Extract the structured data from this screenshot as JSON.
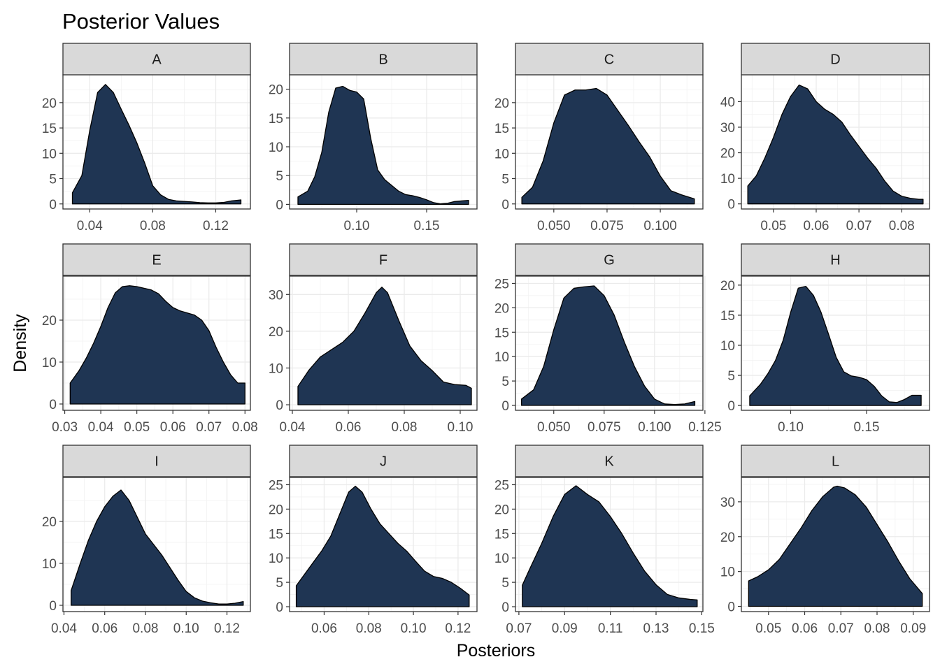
{
  "chart_data": {
    "type": "area",
    "title": "Posterior Values",
    "xlabel": "Posteriors",
    "ylabel": "Density",
    "fill_color": "#1f3553",
    "strip_color": "#d9d9d9",
    "facets": [
      {
        "label": "A",
        "xlim": [
          0.023,
          0.142
        ],
        "ylim": [
          -1,
          25.5
        ],
        "xticks": [
          0.04,
          0.08,
          0.12
        ],
        "xtick_labels": [
          "0.04",
          "0.08",
          "0.12"
        ],
        "yticks": [
          0,
          5,
          10,
          15,
          20
        ],
        "ytick_labels": [
          "0",
          "5",
          "10",
          "15",
          "20"
        ],
        "x": [
          0.029,
          0.035,
          0.04,
          0.045,
          0.05,
          0.055,
          0.06,
          0.065,
          0.07,
          0.075,
          0.08,
          0.085,
          0.09,
          0.095,
          0.1,
          0.105,
          0.11,
          0.115,
          0.12,
          0.125,
          0.13,
          0.136
        ],
        "y": [
          2.2,
          5.6,
          14.5,
          22.0,
          23.6,
          22.0,
          18.7,
          15.5,
          12.0,
          8.0,
          3.6,
          1.8,
          0.9,
          0.6,
          0.5,
          0.4,
          0.25,
          0.2,
          0.2,
          0.3,
          0.6,
          0.8
        ]
      },
      {
        "label": "B",
        "xlim": [
          0.052,
          0.186
        ],
        "ylim": [
          -0.8,
          22.5
        ],
        "xticks": [
          0.1,
          0.15
        ],
        "xtick_labels": [
          "0.10",
          "0.15"
        ],
        "yticks": [
          0,
          5,
          10,
          15,
          20
        ],
        "ytick_labels": [
          "0",
          "5",
          "10",
          "15",
          "20"
        ],
        "x": [
          0.058,
          0.065,
          0.07,
          0.075,
          0.08,
          0.085,
          0.09,
          0.095,
          0.1,
          0.105,
          0.11,
          0.115,
          0.12,
          0.125,
          0.13,
          0.135,
          0.14,
          0.145,
          0.15,
          0.155,
          0.16,
          0.165,
          0.17,
          0.175,
          0.18
        ],
        "y": [
          1.3,
          2.3,
          4.8,
          9.0,
          16.0,
          20.2,
          20.5,
          19.8,
          19.5,
          18.3,
          11.5,
          6.0,
          4.3,
          3.3,
          2.3,
          1.7,
          1.5,
          1.2,
          0.8,
          0.3,
          0.1,
          0.2,
          0.5,
          0.6,
          0.7
        ]
      },
      {
        "label": "C",
        "xlim": [
          0.032,
          0.12
        ],
        "ylim": [
          -1,
          25.5
        ],
        "xticks": [
          0.05,
          0.075,
          0.1
        ],
        "xtick_labels": [
          "0.050",
          "0.075",
          "0.100"
        ],
        "yticks": [
          0,
          5,
          10,
          15,
          20
        ],
        "ytick_labels": [
          "0",
          "5",
          "10",
          "15",
          "20"
        ],
        "x": [
          0.035,
          0.04,
          0.045,
          0.05,
          0.055,
          0.06,
          0.065,
          0.07,
          0.075,
          0.08,
          0.085,
          0.09,
          0.095,
          0.1,
          0.105,
          0.11,
          0.116
        ],
        "y": [
          1.3,
          3.3,
          8.5,
          16.0,
          21.5,
          22.5,
          22.5,
          22.8,
          21.5,
          18.5,
          15.5,
          12.3,
          9.3,
          5.5,
          2.6,
          1.8,
          1.0
        ]
      },
      {
        "label": "D",
        "xlim": [
          0.0425,
          0.0865
        ],
        "ylim": [
          -2,
          50.5
        ],
        "xticks": [
          0.05,
          0.06,
          0.07,
          0.08
        ],
        "xtick_labels": [
          "0.05",
          "0.06",
          "0.07",
          "0.08"
        ],
        "yticks": [
          0,
          10,
          20,
          30,
          40
        ],
        "ytick_labels": [
          "0",
          "10",
          "20",
          "30",
          "40"
        ],
        "x": [
          0.044,
          0.046,
          0.048,
          0.05,
          0.052,
          0.054,
          0.056,
          0.058,
          0.06,
          0.062,
          0.064,
          0.066,
          0.068,
          0.07,
          0.072,
          0.074,
          0.076,
          0.078,
          0.08,
          0.082,
          0.084,
          0.085
        ],
        "y": [
          7,
          11,
          18,
          26,
          35,
          42,
          46.5,
          45,
          40,
          37,
          35,
          32,
          27,
          22.5,
          18,
          14,
          9,
          5,
          3,
          2.2,
          1.8,
          1.8
        ]
      },
      {
        "label": "E",
        "xlim": [
          0.0295,
          0.0815
        ],
        "ylim": [
          -1.5,
          30.5
        ],
        "xticks": [
          0.03,
          0.04,
          0.05,
          0.06,
          0.07,
          0.08
        ],
        "xtick_labels": [
          "0.03",
          "0.04",
          "0.05",
          "0.06",
          "0.07",
          "0.08"
        ],
        "yticks": [
          0,
          10,
          20
        ],
        "ytick_labels": [
          "0",
          "10",
          "20"
        ],
        "x": [
          0.0315,
          0.034,
          0.036,
          0.038,
          0.04,
          0.042,
          0.044,
          0.046,
          0.048,
          0.05,
          0.052,
          0.054,
          0.056,
          0.058,
          0.06,
          0.062,
          0.064,
          0.066,
          0.068,
          0.07,
          0.072,
          0.074,
          0.076,
          0.078,
          0.08
        ],
        "y": [
          5,
          8,
          11,
          14.5,
          18.5,
          23,
          26.5,
          28,
          28.2,
          28,
          27.6,
          27.2,
          26.3,
          24.5,
          23,
          22.2,
          21.7,
          21.2,
          20,
          17.5,
          13.5,
          10,
          7,
          5,
          5
        ]
      },
      {
        "label": "F",
        "xlim": [
          0.039,
          0.106
        ],
        "ylim": [
          -1.5,
          35
        ],
        "xticks": [
          0.04,
          0.06,
          0.08,
          0.1
        ],
        "xtick_labels": [
          "0.04",
          "0.06",
          "0.08",
          "0.10"
        ],
        "yticks": [
          0,
          10,
          20,
          30
        ],
        "ytick_labels": [
          "0",
          "10",
          "20",
          "30"
        ],
        "x": [
          0.042,
          0.046,
          0.05,
          0.054,
          0.058,
          0.062,
          0.066,
          0.07,
          0.072,
          0.074,
          0.078,
          0.082,
          0.086,
          0.09,
          0.094,
          0.098,
          0.102,
          0.104
        ],
        "y": [
          5,
          9.5,
          13,
          15,
          17,
          20,
          25,
          30.5,
          32,
          30.5,
          23,
          16,
          12,
          9.3,
          6.2,
          5.5,
          5.3,
          4.5
        ]
      },
      {
        "label": "G",
        "xlim": [
          0.031,
          0.124
        ],
        "ylim": [
          -1,
          26.5
        ],
        "xticks": [
          0.05,
          0.075,
          0.1,
          0.125
        ],
        "xtick_labels": [
          "0.050",
          "0.075",
          "0.100",
          "0.125"
        ],
        "yticks": [
          0,
          5,
          10,
          15,
          20,
          25
        ],
        "ytick_labels": [
          "0",
          "5",
          "10",
          "15",
          "20",
          "25"
        ],
        "x": [
          0.034,
          0.04,
          0.045,
          0.05,
          0.055,
          0.06,
          0.065,
          0.07,
          0.075,
          0.08,
          0.085,
          0.09,
          0.095,
          0.1,
          0.105,
          0.11,
          0.115,
          0.12
        ],
        "y": [
          1.3,
          3.2,
          8,
          15.5,
          22,
          24,
          24.3,
          24.5,
          22.5,
          18.5,
          13,
          8,
          4,
          1.3,
          0.3,
          0.2,
          0.3,
          0.8
        ]
      },
      {
        "label": "H",
        "xlim": [
          0.0675,
          0.1915
        ],
        "ylim": [
          -0.8,
          21.5
        ],
        "xticks": [
          0.1,
          0.15
        ],
        "xtick_labels": [
          "0.10",
          "0.15"
        ],
        "yticks": [
          0,
          5,
          10,
          15,
          20
        ],
        "ytick_labels": [
          "0",
          "5",
          "10",
          "15",
          "20"
        ],
        "x": [
          0.073,
          0.08,
          0.085,
          0.09,
          0.095,
          0.1,
          0.105,
          0.11,
          0.115,
          0.12,
          0.125,
          0.13,
          0.135,
          0.14,
          0.145,
          0.15,
          0.155,
          0.16,
          0.165,
          0.17,
          0.175,
          0.18,
          0.186
        ],
        "y": [
          1.6,
          3.5,
          5.3,
          7.5,
          10.8,
          15.5,
          19.5,
          19.8,
          18.3,
          15.5,
          11.8,
          8,
          5.6,
          4.9,
          4.7,
          4.3,
          3.2,
          1.6,
          0.6,
          0.5,
          1.0,
          1.7,
          1.7
        ]
      },
      {
        "label": "I",
        "xlim": [
          0.0395,
          0.1315
        ],
        "ylim": [
          -1.5,
          30.5
        ],
        "xticks": [
          0.04,
          0.06,
          0.08,
          0.1,
          0.12
        ],
        "xtick_labels": [
          "0.04",
          "0.06",
          "0.08",
          "0.10",
          "0.12"
        ],
        "yticks": [
          0,
          10,
          20
        ],
        "ytick_labels": [
          "0",
          "10",
          "20"
        ],
        "x": [
          0.0435,
          0.048,
          0.052,
          0.056,
          0.06,
          0.064,
          0.068,
          0.072,
          0.076,
          0.08,
          0.084,
          0.088,
          0.092,
          0.096,
          0.1,
          0.104,
          0.108,
          0.112,
          0.116,
          0.12,
          0.124,
          0.128
        ],
        "y": [
          3.5,
          10,
          15.5,
          20,
          23.5,
          26,
          27.5,
          25,
          21,
          17,
          14.5,
          12,
          9,
          6,
          3.3,
          1.8,
          1.0,
          0.6,
          0.3,
          0.3,
          0.5,
          0.9
        ]
      },
      {
        "label": "J",
        "xlim": [
          0.0445,
          0.1285
        ],
        "ylim": [
          -1,
          26.5
        ],
        "xticks": [
          0.06,
          0.08,
          0.1,
          0.12
        ],
        "xtick_labels": [
          "0.06",
          "0.08",
          "0.10",
          "0.12"
        ],
        "yticks": [
          0,
          5,
          10,
          15,
          20,
          25
        ],
        "ytick_labels": [
          "0",
          "5",
          "10",
          "15",
          "20",
          "25"
        ],
        "x": [
          0.0475,
          0.051,
          0.055,
          0.059,
          0.063,
          0.067,
          0.071,
          0.074,
          0.077,
          0.081,
          0.085,
          0.089,
          0.093,
          0.097,
          0.101,
          0.105,
          0.109,
          0.113,
          0.117,
          0.121,
          0.125
        ],
        "y": [
          4.3,
          6.5,
          9,
          11.5,
          14.5,
          19,
          23.5,
          24.7,
          23.5,
          20,
          17,
          15,
          13,
          11.4,
          9.3,
          7.3,
          6.2,
          5.8,
          5,
          3.8,
          2.4
        ]
      },
      {
        "label": "K",
        "xlim": [
          0.0685,
          0.1505
        ],
        "ylim": [
          -1,
          26.5
        ],
        "xticks": [
          0.07,
          0.09,
          0.11,
          0.13,
          0.15
        ],
        "xtick_labels": [
          "0.07",
          "0.09",
          "0.11",
          "0.13",
          "0.15"
        ],
        "yticks": [
          0,
          5,
          10,
          15,
          20,
          25
        ],
        "ytick_labels": [
          "0",
          "5",
          "10",
          "15",
          "20",
          "25"
        ],
        "x": [
          0.0715,
          0.075,
          0.08,
          0.085,
          0.09,
          0.095,
          0.1,
          0.105,
          0.11,
          0.115,
          0.12,
          0.125,
          0.13,
          0.135,
          0.14,
          0.145,
          0.148
        ],
        "y": [
          4.4,
          8,
          13,
          18.5,
          23,
          24.8,
          23,
          21.5,
          18.5,
          15,
          11,
          7.3,
          4.5,
          2.5,
          1.8,
          1.5,
          1.4
        ]
      },
      {
        "label": "L",
        "xlim": [
          0.0425,
          0.0945
        ],
        "ylim": [
          -1.5,
          37
        ],
        "xticks": [
          0.05,
          0.06,
          0.07,
          0.08,
          0.09
        ],
        "xtick_labels": [
          "0.05",
          "0.06",
          "0.07",
          "0.08",
          "0.09"
        ],
        "yticks": [
          0,
          10,
          20,
          30
        ],
        "ytick_labels": [
          "0",
          "10",
          "20",
          "30"
        ],
        "x": [
          0.0445,
          0.047,
          0.05,
          0.053,
          0.056,
          0.059,
          0.062,
          0.065,
          0.068,
          0.069,
          0.071,
          0.074,
          0.077,
          0.08,
          0.083,
          0.086,
          0.089,
          0.0925
        ],
        "y": [
          7.3,
          8.5,
          10.5,
          13.5,
          18,
          22.5,
          27.5,
          31.5,
          34.2,
          34.5,
          34,
          32,
          28.5,
          23.5,
          18.5,
          13,
          8,
          3.7
        ]
      }
    ]
  }
}
